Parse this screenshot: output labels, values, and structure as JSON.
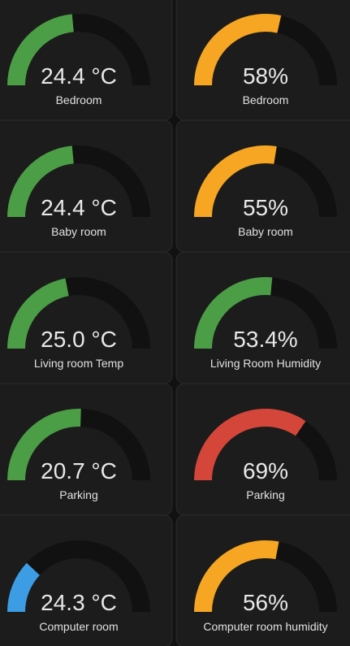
{
  "cards": [
    {
      "value": "24.4 °C",
      "label": "Bedroom",
      "level": 47,
      "color": "#4c9e46"
    },
    {
      "value": "58%",
      "label": "Bedroom",
      "level": 57,
      "color": "#f6a623"
    },
    {
      "value": "24.4 °C",
      "label": "Baby room",
      "level": 47,
      "color": "#4c9e46"
    },
    {
      "value": "55%",
      "label": "Baby room",
      "level": 55,
      "color": "#f6a623"
    },
    {
      "value": "25.0 °C",
      "label": "Living room Temp",
      "level": 44,
      "color": "#4c9e46"
    },
    {
      "value": "53.4%",
      "label": "Living Room Humidity",
      "level": 53,
      "color": "#4c9e46"
    },
    {
      "value": "20.7 °C",
      "label": "Parking",
      "level": 51,
      "color": "#4c9e46"
    },
    {
      "value": "69%",
      "label": "Parking",
      "level": 69,
      "color": "#d4463a"
    },
    {
      "value": "24.3 °C",
      "label": "Computer room",
      "level": 24,
      "color": "#3c9ce4"
    },
    {
      "value": "56%",
      "label": "Computer room humidity",
      "level": 56,
      "color": "#f6a623"
    }
  ]
}
